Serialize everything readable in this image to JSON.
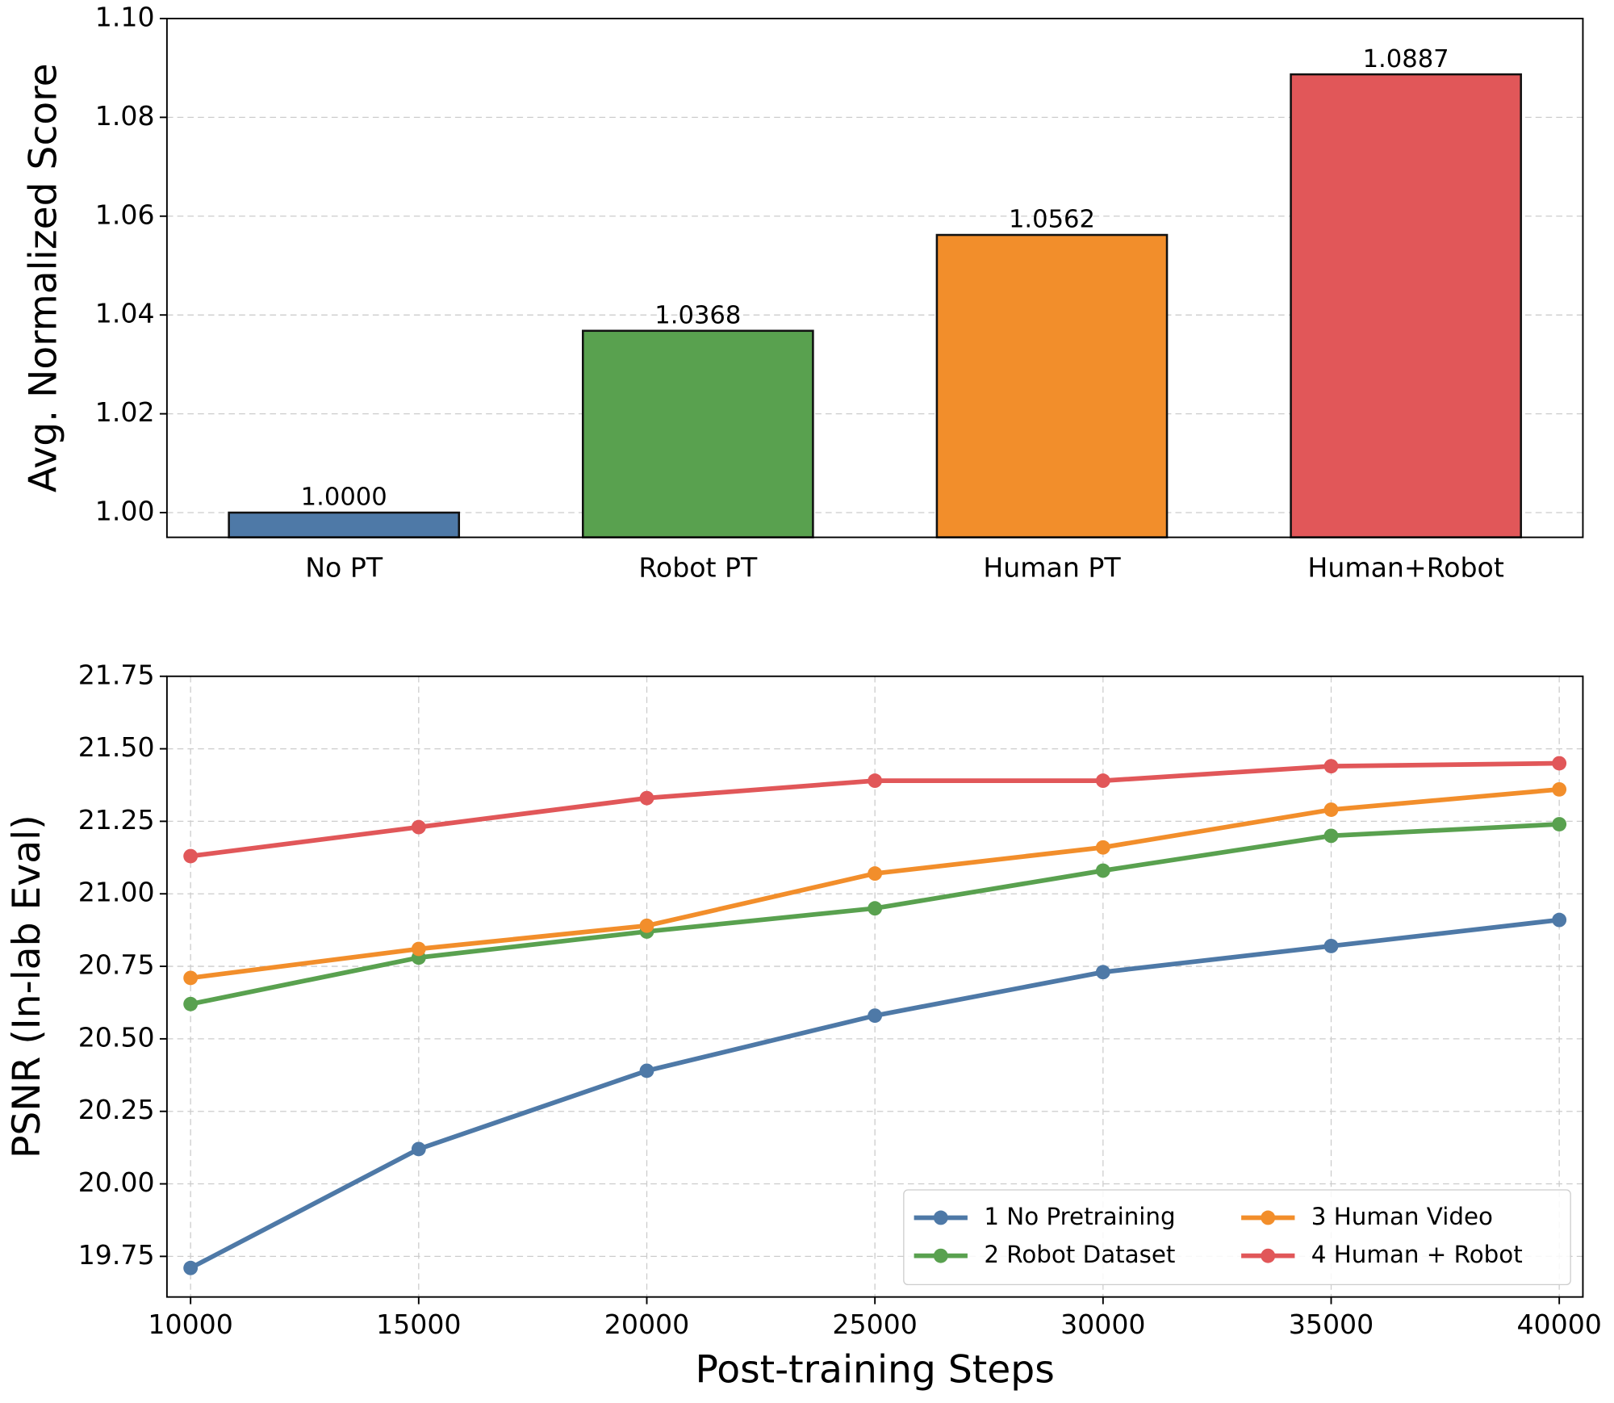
{
  "chart_data": [
    {
      "type": "bar",
      "ylabel": "Avg. Normalized Score",
      "categories": [
        "No PT",
        "Robot PT",
        "Human PT",
        "Human+Robot"
      ],
      "values": [
        1.0,
        1.0368,
        1.0562,
        1.0887
      ],
      "value_labels": [
        "1.0000",
        "1.0368",
        "1.0562",
        "1.0887"
      ],
      "colors": [
        "#4e79a7",
        "#59a14f",
        "#f28e2b",
        "#e15759"
      ],
      "ylim": [
        0.995,
        1.1
      ],
      "yticks": [
        {
          "value": 1.0,
          "label": "1.00"
        },
        1.02,
        1.04,
        1.06,
        1.08,
        {
          "value": 1.1,
          "label": "1.10"
        }
      ],
      "grid": "y"
    },
    {
      "type": "line",
      "xlabel": "Post-training Steps",
      "ylabel": "PSNR (In-lab Eval)",
      "x": [
        10000,
        15000,
        20000,
        25000,
        30000,
        35000,
        40000
      ],
      "series": [
        {
          "name": "1 No Pretraining",
          "color": "#4e79a7",
          "values": [
            19.71,
            20.12,
            20.39,
            20.58,
            20.73,
            20.82,
            20.91
          ]
        },
        {
          "name": "2 Robot Dataset",
          "color": "#59a14f",
          "values": [
            20.62,
            20.78,
            20.87,
            20.95,
            21.08,
            21.2,
            21.24
          ]
        },
        {
          "name": "3 Human Video",
          "color": "#f28e2b",
          "values": [
            20.71,
            20.81,
            20.89,
            21.07,
            21.16,
            21.29,
            21.36
          ]
        },
        {
          "name": "4 Human + Robot",
          "color": "#e15759",
          "values": [
            21.13,
            21.23,
            21.33,
            21.39,
            21.39,
            21.44,
            21.45
          ]
        }
      ],
      "xlim": [
        9482,
        40518
      ],
      "xticks": [
        10000,
        15000,
        20000,
        25000,
        30000,
        35000,
        40000
      ],
      "ylim": [
        19.61,
        21.75
      ],
      "yticks": [
        19.75,
        {
          "value": 20.0,
          "label": "20.00"
        },
        20.25,
        {
          "value": 20.5,
          "label": "20.50"
        },
        20.75,
        {
          "value": 21.0,
          "label": "21.00"
        },
        21.25,
        {
          "value": 21.5,
          "label": "21.50"
        },
        21.75
      ],
      "grid": "both",
      "legend": "lower right",
      "legend_columns": 2
    }
  ]
}
